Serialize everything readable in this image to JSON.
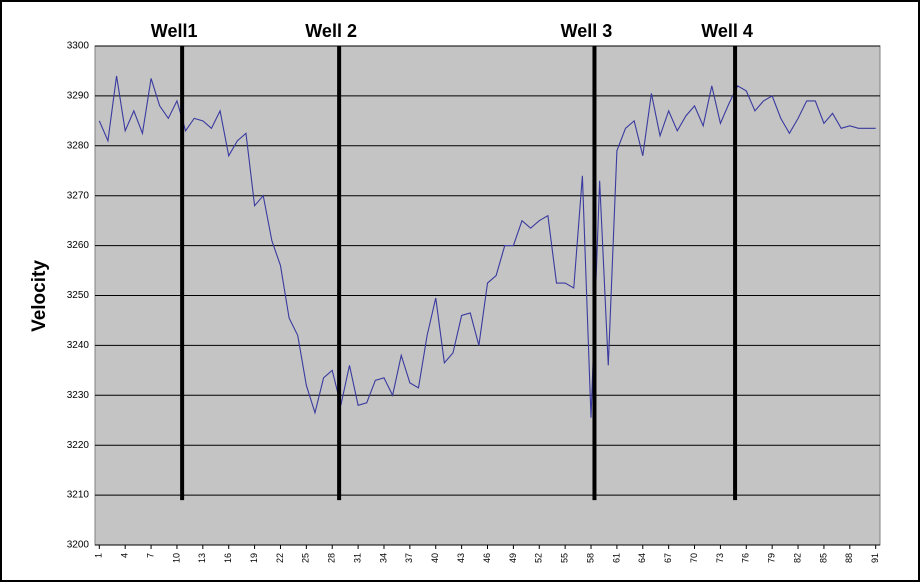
{
  "chart_data": {
    "type": "line",
    "y_label": "Velocity",
    "categories": [
      "1",
      null,
      null,
      "4",
      null,
      null,
      "7",
      null,
      null,
      "10",
      null,
      null,
      "13",
      null,
      null,
      "16",
      null,
      null,
      "19",
      null,
      null,
      "22",
      null,
      null,
      "25",
      null,
      null,
      "28",
      null,
      null,
      "31",
      null,
      null,
      "34",
      null,
      null,
      "37",
      null,
      null,
      "40",
      null,
      null,
      "43",
      null,
      null,
      "46",
      null,
      null,
      "49",
      null,
      null,
      "52",
      null,
      null,
      "55",
      null,
      null,
      "58",
      null,
      null,
      "61",
      null,
      null,
      "64",
      null,
      null,
      "67",
      null,
      null,
      "70",
      null,
      null,
      "73",
      null,
      null,
      "76",
      null,
      null,
      "79",
      null,
      null,
      "82",
      null,
      null,
      "85",
      null,
      null,
      "88",
      null,
      null,
      "91"
    ],
    "series": [
      {
        "color": "#3a3aa0",
        "values": [
          3285,
          3281,
          3294,
          3283,
          3287,
          3282.5,
          3293.5,
          3288,
          3285.5,
          3289,
          3283,
          3285.5,
          3285,
          3283.5,
          3287,
          3278,
          3281,
          3282.5,
          3268,
          3270,
          3261,
          3256,
          3245.5,
          3242,
          3232,
          3226.5,
          3233.5,
          3235,
          3228,
          3236,
          3228,
          3228.5,
          3233,
          3233.5,
          3230,
          3238,
          3232.5,
          3231.5,
          3242,
          3249.5,
          3236.5,
          3238.5,
          3246,
          3246.5,
          3240,
          3252.5,
          3254,
          3260,
          3260,
          3265,
          3263.5,
          3265,
          3266,
          3252.5,
          3252.5,
          3251.5,
          3274,
          3225.5,
          3273,
          3236,
          3279,
          3283.5,
          3285,
          3278,
          3290.5,
          3282,
          3287,
          3283,
          3286,
          3288,
          3284,
          3292,
          3284.5,
          3288.5,
          3292,
          3291,
          3287,
          3289,
          3290,
          3285.5,
          3282.5,
          3285.5,
          3289,
          3289,
          3284.5,
          3286.5,
          3283.5,
          3284,
          3283.5,
          3283.5,
          3283.5
        ]
      }
    ],
    "ylim": [
      3200,
      3300
    ],
    "yticks": [
      3200,
      3210,
      3220,
      3230,
      3240,
      3250,
      3260,
      3270,
      3280,
      3290,
      3300
    ],
    "grid": true,
    "marker_lines": [
      {
        "label": "Well1",
        "x": 10.6
      },
      {
        "label": "Well 2",
        "x": 28.8
      },
      {
        "label": "Well 3",
        "x": 58.4
      },
      {
        "label": "Well 4",
        "x": 74.7
      }
    ],
    "marker_line_bottom": 3209
  }
}
